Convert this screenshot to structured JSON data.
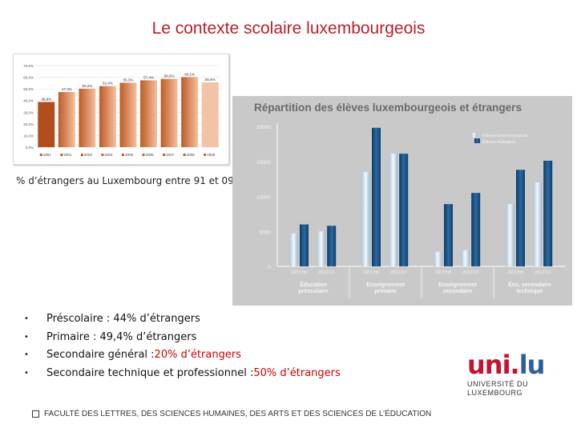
{
  "slide": {
    "title": "Le contexte scolaire luxembourgeois",
    "caption": "% d’étrangers au Luxembourg entre 91 et 09",
    "bullets": [
      {
        "marker": "•",
        "text": "Préscolaire : 44% d’étrangers",
        "highlight": ""
      },
      {
        "marker": "•",
        "text": "Primaire : 49,4% d’étrangers",
        "highlight": ""
      },
      {
        "marker": "•",
        "text": "Secondaire général : ",
        "highlight": "20% d’étrangers"
      },
      {
        "marker": "•",
        "text": "Secondaire technique et professionnel : ",
        "highlight": "50% d’étrangers"
      }
    ],
    "footer": "FACULTÉ DES LETTRES, DES SCIENCES HUMAINES, DES ARTS ET DES SCIENCES DE L’ÉDUCATION",
    "logo": {
      "mark_uni": "uni.",
      "mark_lu": "lu",
      "line1": "UNIVERSITÉ DU",
      "line2": "LUXEMBOURG"
    }
  },
  "colors": {
    "title": "#b8202a",
    "highlight": "#cc0000",
    "bar_light": "#f4c1a0",
    "bar_dark": "#c05a25",
    "dark_blue": "#1c4f80",
    "light_blue": "#d6e4ee"
  },
  "chart_data": [
    {
      "type": "bar",
      "title": "",
      "categories": [
        "1991",
        "2001",
        "2003",
        "2004",
        "2005",
        "2006",
        "2007",
        "2008",
        "2009"
      ],
      "values": [
        38.8,
        47.3,
        50.2,
        52.4,
        55.3,
        57.4,
        58.6,
        60.1,
        55.6
      ],
      "value_labels": [
        "38,8%",
        "47,3%",
        "50,2%",
        "52,4%",
        "55,3%",
        "57,4%",
        "58,6%",
        "60,1%",
        "55,6%"
      ],
      "yticks": [
        "0,0%",
        "10,0%",
        "20,0%",
        "30,0%",
        "40,0%",
        "50,0%",
        "60,0%",
        "70,0%"
      ],
      "ylim": [
        0,
        70
      ],
      "grid": true
    },
    {
      "type": "bar",
      "title": "Répartition des élèves luxembourgeois et étrangers",
      "groups": [
        {
          "label": "Éducation\npréscolaire",
          "years": [
            "2007/08",
            "2012/13"
          ],
          "lux": [
            4700,
            5000
          ],
          "etr": [
            6000,
            5800
          ]
        },
        {
          "label": "Enseignement\nprimaire",
          "years": [
            "2007/08",
            "2012/13"
          ],
          "lux": [
            13500,
            16100
          ],
          "etr": [
            19800,
            16100
          ]
        },
        {
          "label": "Enseignement\nsecondaire",
          "years": [
            "2007/08",
            "2012/13"
          ],
          "lux": [
            2100,
            2300
          ],
          "etr": [
            8900,
            10500
          ]
        },
        {
          "label": "Ens. secondaire\ntechnique",
          "years": [
            "2007/08",
            "2012/13"
          ],
          "lux": [
            8900,
            12000
          ],
          "etr": [
            13800,
            15100
          ]
        }
      ],
      "series": [
        {
          "name": "Élèves luxembourgeois"
        },
        {
          "name": "Élèves étrangers"
        }
      ],
      "yticks": [
        0,
        5000,
        10000,
        15000,
        20000
      ],
      "ylim": [
        0,
        20000
      ],
      "legend": "top-right",
      "grid": false
    }
  ]
}
